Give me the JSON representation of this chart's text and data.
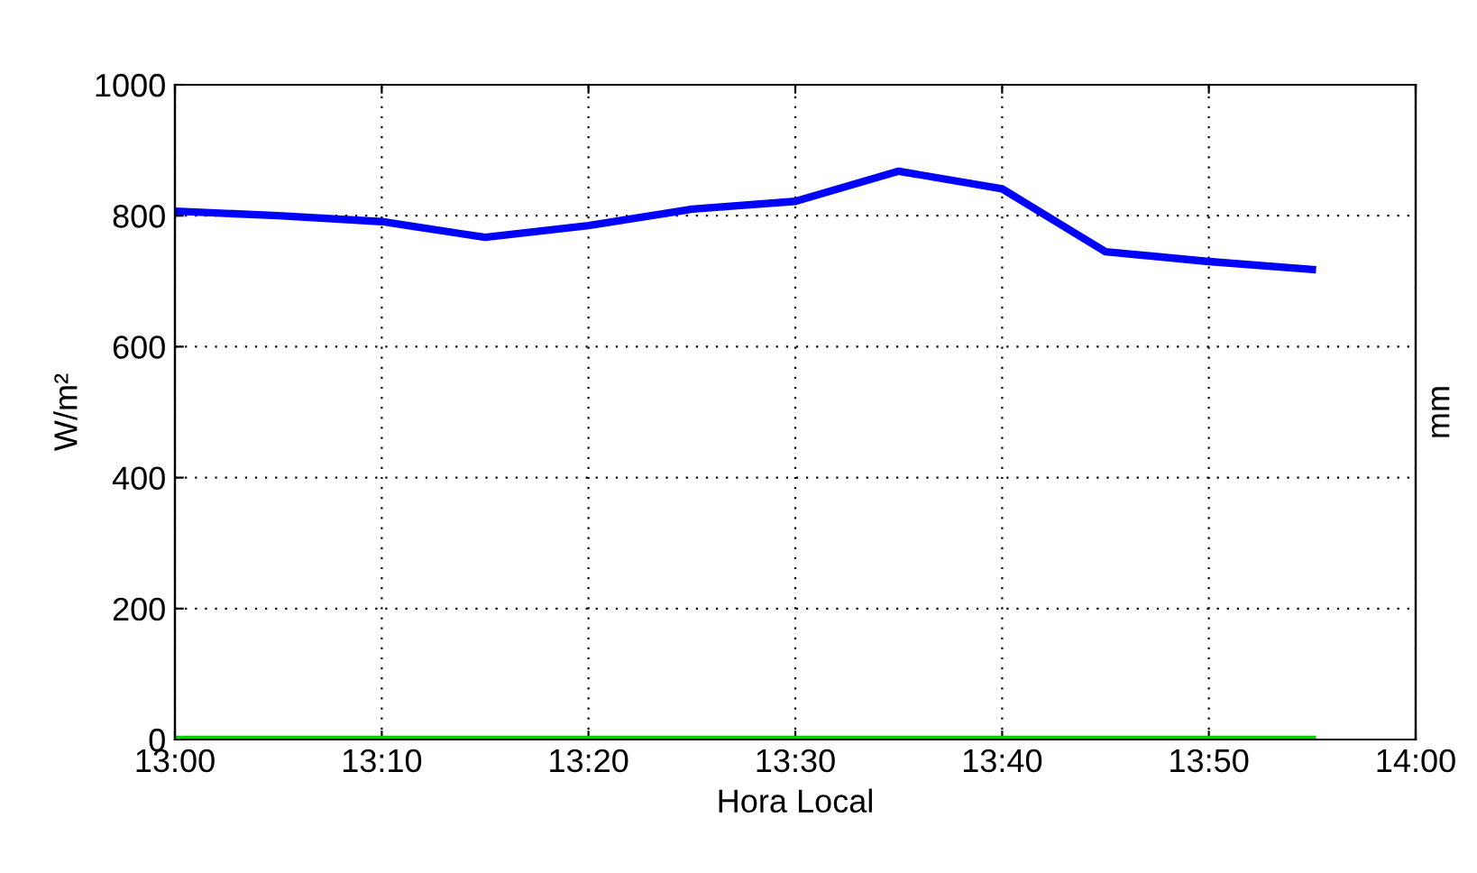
{
  "chart_data": {
    "type": "line",
    "xlabel": "Hora Local",
    "ylabel": "W/m²",
    "y2label": "mm",
    "x": [
      13.0,
      13.0833,
      13.1667,
      13.25,
      13.3333,
      13.4167,
      13.5,
      13.5833,
      13.6667,
      13.75,
      13.8333,
      13.9167
    ],
    "series": [
      {
        "color": "#0000ff",
        "values": [
          807,
          800,
          791,
          767,
          785,
          810,
          822,
          868,
          841,
          745,
          730,
          718
        ]
      },
      {
        "color": "#00cc00",
        "values": [
          0,
          0,
          0,
          0,
          0,
          0,
          0,
          0,
          0,
          0,
          0,
          0
        ]
      }
    ],
    "xlim": [
      13.0,
      14.0
    ],
    "xticks": [
      {
        "value": 13.0,
        "label": "13:00"
      },
      {
        "value": 13.1667,
        "label": "13:10"
      },
      {
        "value": 13.3333,
        "label": "13:20"
      },
      {
        "value": 13.5,
        "label": "13:30"
      },
      {
        "value": 13.6667,
        "label": "13:40"
      },
      {
        "value": 13.8333,
        "label": "13:50"
      },
      {
        "value": 14.0,
        "label": "14:00"
      }
    ],
    "ylim": [
      0,
      1000
    ],
    "yticks": [
      0,
      200,
      400,
      600,
      800,
      1000
    ],
    "grid": true,
    "line_style": "solid",
    "marker": "none"
  }
}
